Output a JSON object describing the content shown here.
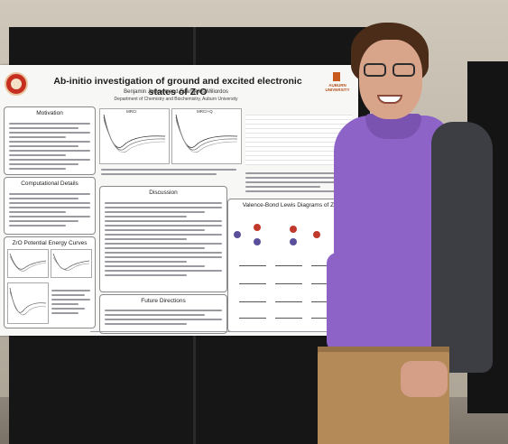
{
  "poster": {
    "title": "Ab-initio investigation of ground and excited electronic states of ZrO",
    "authors": "Benjamin Jackson and Evangelos Miliordos",
    "department": "Department of Chemistry and Biochemistry, Auburn University",
    "logo_right_text": "AUBURN UNIVERSITY",
    "sections": {
      "motivation": "Motivation",
      "computational": "Computational Details",
      "zro_pec": "ZrO Potential Energy Curves",
      "discussion": "Discussion",
      "future": "Future Directions",
      "vb_diagrams": "Valence-Bond Lewis Diagrams of ZrO"
    },
    "plot_labels": {
      "mrci": "MRCI",
      "mrci_q": "MRCI+Q"
    }
  },
  "colors": {
    "poster_bg": "#f7f7f5",
    "shirt": "#8e63c7",
    "board": "#161616"
  }
}
